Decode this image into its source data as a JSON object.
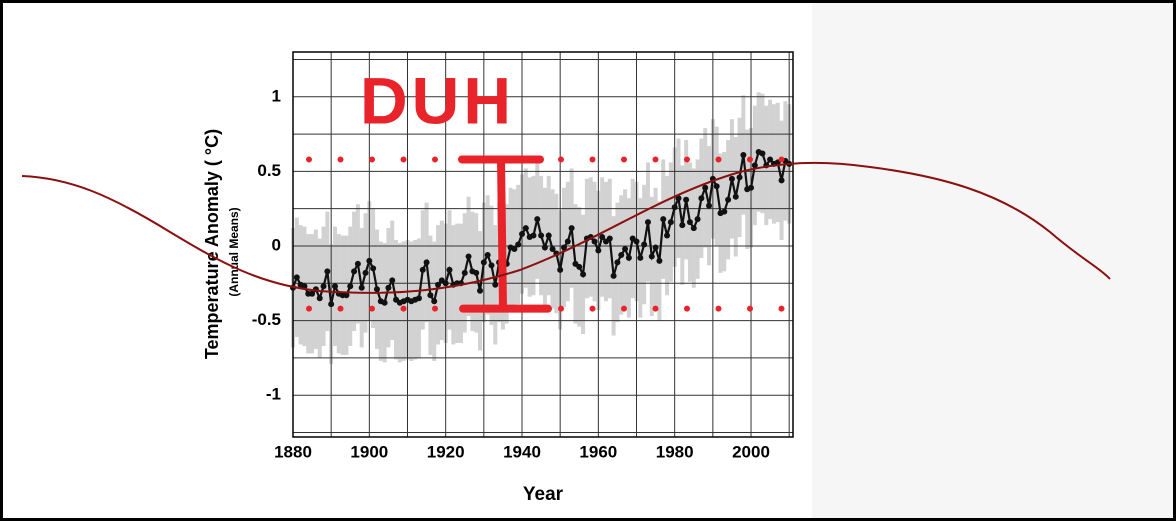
{
  "chart_data": {
    "type": "line",
    "title": "DUH",
    "x_label": "Year",
    "y_label": "Temperature Anomaly ( °C)",
    "y_sublabel": "(Annual Means)",
    "x": [
      1880,
      1881,
      1882,
      1883,
      1884,
      1885,
      1886,
      1887,
      1888,
      1889,
      1890,
      1891,
      1892,
      1893,
      1894,
      1895,
      1896,
      1897,
      1898,
      1899,
      1900,
      1901,
      1902,
      1903,
      1904,
      1905,
      1906,
      1907,
      1908,
      1909,
      1910,
      1911,
      1912,
      1913,
      1914,
      1915,
      1916,
      1917,
      1918,
      1919,
      1920,
      1921,
      1922,
      1923,
      1924,
      1925,
      1926,
      1927,
      1928,
      1929,
      1930,
      1931,
      1932,
      1933,
      1934,
      1935,
      1936,
      1937,
      1938,
      1939,
      1940,
      1941,
      1942,
      1943,
      1944,
      1945,
      1946,
      1947,
      1948,
      1949,
      1950,
      1951,
      1952,
      1953,
      1954,
      1955,
      1956,
      1957,
      1958,
      1959,
      1960,
      1961,
      1962,
      1963,
      1964,
      1965,
      1966,
      1967,
      1968,
      1969,
      1970,
      1971,
      1972,
      1973,
      1974,
      1975,
      1976,
      1977,
      1978,
      1979,
      1980,
      1981,
      1982,
      1983,
      1984,
      1985,
      1986,
      1987,
      1988,
      1989,
      1990,
      1991,
      1992,
      1993,
      1994,
      1995,
      1996,
      1997,
      1998,
      1999,
      2000,
      2001,
      2002,
      2003,
      2004,
      2005,
      2006,
      2007,
      2008,
      2009,
      2010
    ],
    "series": [
      {
        "name": "Annual mean",
        "color": "#111111",
        "values": [
          -0.28,
          -0.21,
          -0.26,
          -0.27,
          -0.32,
          -0.32,
          -0.29,
          -0.35,
          -0.27,
          -0.17,
          -0.39,
          -0.27,
          -0.32,
          -0.33,
          -0.33,
          -0.27,
          -0.17,
          -0.12,
          -0.28,
          -0.18,
          -0.1,
          -0.15,
          -0.29,
          -0.37,
          -0.38,
          -0.28,
          -0.23,
          -0.36,
          -0.38,
          -0.37,
          -0.36,
          -0.37,
          -0.36,
          -0.35,
          -0.16,
          -0.11,
          -0.33,
          -0.37,
          -0.26,
          -0.23,
          -0.25,
          -0.16,
          -0.26,
          -0.25,
          -0.25,
          -0.18,
          -0.07,
          -0.17,
          -0.18,
          -0.3,
          -0.11,
          -0.06,
          -0.13,
          -0.26,
          -0.11,
          -0.16,
          -0.12,
          -0.01,
          -0.02,
          0.01,
          0.08,
          0.12,
          0.06,
          0.07,
          0.18,
          0.07,
          -0.01,
          0.07,
          -0.02,
          -0.05,
          -0.16,
          -0.01,
          0.03,
          0.12,
          -0.12,
          -0.14,
          -0.19,
          0.05,
          0.06,
          0.03,
          -0.03,
          0.06,
          0.03,
          0.05,
          -0.2,
          -0.11,
          -0.06,
          -0.02,
          -0.08,
          0.05,
          0.03,
          -0.08,
          0.01,
          0.16,
          -0.07,
          -0.01,
          -0.1,
          0.18,
          0.07,
          0.16,
          0.26,
          0.32,
          0.14,
          0.31,
          0.16,
          0.12,
          0.18,
          0.32,
          0.39,
          0.27,
          0.45,
          0.4,
          0.22,
          0.23,
          0.31,
          0.45,
          0.33,
          0.46,
          0.61,
          0.38,
          0.39,
          0.54,
          0.63,
          0.62,
          0.54,
          0.58,
          0.55,
          0.56,
          0.44,
          0.57,
          0.55
        ]
      }
    ],
    "error_band": 0.4,
    "band_color": "#d2d2d2",
    "reference_lines": [
      0.58,
      -0.42
    ],
    "annotation_color": "#e8232a",
    "xlim": [
      1880,
      2011
    ],
    "ylim": [
      -1.28,
      1.3
    ],
    "xticks": [
      1880,
      1900,
      1920,
      1940,
      1960,
      1980,
      2000
    ],
    "yticks": [
      -1,
      -0.5,
      0,
      0.5,
      1
    ],
    "grid": true
  }
}
